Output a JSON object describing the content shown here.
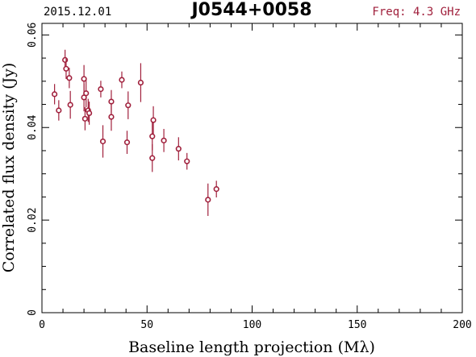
{
  "header": {
    "date": "2015.12.01",
    "source": "J0544+0058",
    "freq": "Freq: 4.3 GHz"
  },
  "chart_data": {
    "type": "scatter",
    "xlabel": "Baseline length projection (Mλ)",
    "ylabel": "Correlated flux density (Jy)",
    "xlim": [
      0,
      200
    ],
    "ylim": [
      0,
      0.0625
    ],
    "x_ticks": [
      0,
      50,
      100,
      150,
      200
    ],
    "x_tick_labels": [
      "0",
      "50",
      "100",
      "150",
      "200"
    ],
    "y_ticks": [
      0,
      0.02,
      0.04,
      0.06
    ],
    "y_tick_labels": [
      "0",
      "0.02",
      "0.04",
      "0.06"
    ],
    "grid": false,
    "marker_color": "#a0203c",
    "points": [
      {
        "x": 6.0,
        "y": 0.0472,
        "err": 0.0022
      },
      {
        "x": 8.0,
        "y": 0.0437,
        "err": 0.0022
      },
      {
        "x": 11.0,
        "y": 0.0546,
        "err": 0.0022
      },
      {
        "x": 11.5,
        "y": 0.0527,
        "err": 0.0022
      },
      {
        "x": 13.0,
        "y": 0.0507,
        "err": 0.0022
      },
      {
        "x": 13.5,
        "y": 0.0449,
        "err": 0.003
      },
      {
        "x": 20.0,
        "y": 0.0505,
        "err": 0.003
      },
      {
        "x": 20.0,
        "y": 0.0465,
        "err": 0.003
      },
      {
        "x": 21.0,
        "y": 0.0474,
        "err": 0.003
      },
      {
        "x": 20.5,
        "y": 0.0419,
        "err": 0.0025
      },
      {
        "x": 22.0,
        "y": 0.0437,
        "err": 0.0025
      },
      {
        "x": 22.5,
        "y": 0.0431,
        "err": 0.0025
      },
      {
        "x": 28.0,
        "y": 0.0483,
        "err": 0.0018
      },
      {
        "x": 29.0,
        "y": 0.037,
        "err": 0.0035
      },
      {
        "x": 33.0,
        "y": 0.0456,
        "err": 0.0025
      },
      {
        "x": 33.0,
        "y": 0.0423,
        "err": 0.003
      },
      {
        "x": 38.0,
        "y": 0.0503,
        "err": 0.0018
      },
      {
        "x": 41.0,
        "y": 0.0448,
        "err": 0.003
      },
      {
        "x": 40.5,
        "y": 0.0368,
        "err": 0.0025
      },
      {
        "x": 47.0,
        "y": 0.0497,
        "err": 0.0042
      },
      {
        "x": 53.0,
        "y": 0.0416,
        "err": 0.003
      },
      {
        "x": 52.5,
        "y": 0.0381,
        "err": 0.003
      },
      {
        "x": 52.5,
        "y": 0.0334,
        "err": 0.003
      },
      {
        "x": 58.0,
        "y": 0.0372,
        "err": 0.0025
      },
      {
        "x": 65.0,
        "y": 0.0354,
        "err": 0.0025
      },
      {
        "x": 69.0,
        "y": 0.0327,
        "err": 0.0018
      },
      {
        "x": 79.0,
        "y": 0.0244,
        "err": 0.0035
      },
      {
        "x": 83.0,
        "y": 0.0267,
        "err": 0.0018
      }
    ]
  }
}
